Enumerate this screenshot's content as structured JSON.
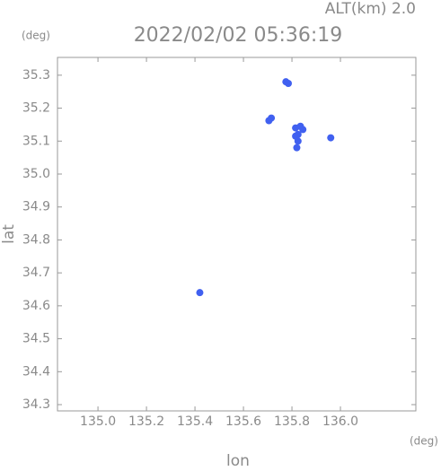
{
  "chart_data": {
    "type": "scatter",
    "header": "ALT(km) 2.0",
    "title": "2022/02/02 05:36:19",
    "y_unit": "(deg)",
    "x_unit": "(deg)",
    "xlabel": "lon",
    "ylabel": "lat",
    "color": "#4060f0",
    "x": [
      135.775,
      135.785,
      135.705,
      135.715,
      135.815,
      135.835,
      135.845,
      135.825,
      135.815,
      135.825,
      135.82,
      135.96,
      135.42
    ],
    "values": [
      35.28,
      35.275,
      35.162,
      35.17,
      35.14,
      35.145,
      35.135,
      35.12,
      35.115,
      35.1,
      35.08,
      35.11,
      34.64
    ],
    "xlim": [
      134.833,
      136.311
    ],
    "ylim": [
      34.281,
      35.354
    ],
    "xticks": [
      {
        "value": 135,
        "label": "135.0"
      },
      135.2,
      135.4,
      135.6,
      135.8,
      {
        "value": 136,
        "label": "136.0"
      }
    ],
    "yticks": [
      34.3,
      34.4,
      34.5,
      34.6,
      34.7,
      34.8,
      34.9,
      {
        "value": 35,
        "label": "35.0"
      },
      35.1,
      35.2,
      35.3
    ]
  }
}
